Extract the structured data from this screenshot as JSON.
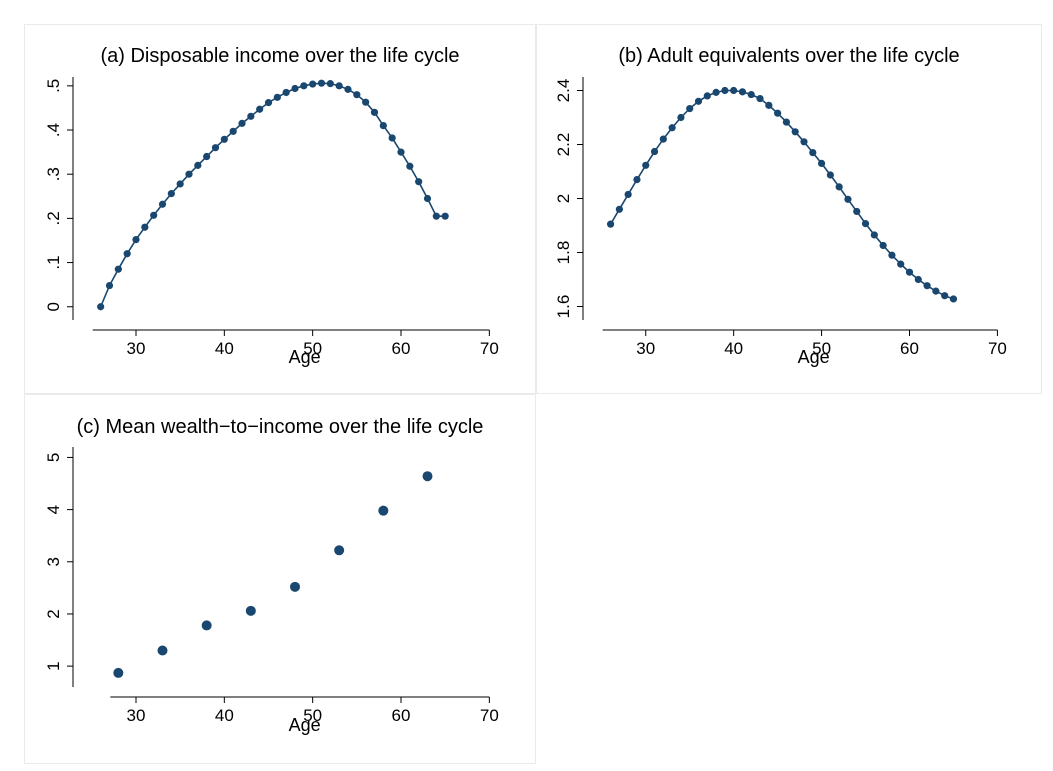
{
  "figure": {
    "colors": {
      "marker": "#1a476f",
      "line": "#1a476f",
      "axis": "#000000",
      "panel_border": "#eaeaea"
    }
  },
  "chart_data": [
    {
      "id": "a",
      "type": "line",
      "title": "(a) Disposable income over the life cycle",
      "xlabel": "Age",
      "ylabel": "",
      "xlim": [
        24,
        72
      ],
      "ylim": [
        -0.03,
        0.52
      ],
      "xticks": [
        30,
        40,
        50,
        60,
        70
      ],
      "xtick_labels": [
        "30",
        "40",
        "50",
        "60",
        "70"
      ],
      "yticks": [
        0,
        0.1,
        0.2,
        0.3,
        0.4,
        0.5
      ],
      "ytick_labels": [
        "0",
        ".1",
        ".2",
        ".3",
        ".4",
        ".5"
      ],
      "grid": false,
      "markers": true,
      "series": [
        {
          "x": [
            26,
            27,
            28,
            29,
            30,
            31,
            32,
            33,
            34,
            35,
            36,
            37,
            38,
            39,
            40,
            41,
            42,
            43,
            44,
            45,
            46,
            47,
            48,
            49,
            50,
            51,
            52,
            53,
            54,
            55,
            56,
            57,
            58,
            59,
            60,
            61,
            62,
            63,
            64,
            65
          ],
          "y": [
            0.0,
            0.048,
            0.085,
            0.12,
            0.152,
            0.18,
            0.207,
            0.232,
            0.256,
            0.278,
            0.3,
            0.32,
            0.34,
            0.36,
            0.379,
            0.397,
            0.415,
            0.431,
            0.447,
            0.462,
            0.474,
            0.485,
            0.494,
            0.5,
            0.504,
            0.506,
            0.505,
            0.5,
            0.492,
            0.48,
            0.463,
            0.44,
            0.41,
            0.382,
            0.35,
            0.318,
            0.283,
            0.245,
            0.205,
            0.205
          ]
        }
      ]
    },
    {
      "id": "b",
      "type": "line",
      "title": "(b) Adult equivalents over the life cycle",
      "xlabel": "Age",
      "ylabel": "",
      "xlim": [
        24,
        72
      ],
      "ylim": [
        1.55,
        2.45
      ],
      "xticks": [
        30,
        40,
        50,
        60,
        70
      ],
      "xtick_labels": [
        "30",
        "40",
        "50",
        "60",
        "70"
      ],
      "yticks": [
        1.6,
        1.8,
        2.0,
        2.2,
        2.4
      ],
      "ytick_labels": [
        "1.6",
        "1.8",
        "2",
        "2.2",
        "2.4"
      ],
      "grid": false,
      "markers": true,
      "series": [
        {
          "x": [
            26,
            27,
            28,
            29,
            30,
            31,
            32,
            33,
            34,
            35,
            36,
            37,
            38,
            39,
            40,
            41,
            42,
            43,
            44,
            45,
            46,
            47,
            48,
            49,
            50,
            51,
            52,
            53,
            54,
            55,
            56,
            57,
            58,
            59,
            60,
            61,
            62,
            63,
            64,
            65
          ],
          "y": [
            1.905,
            1.96,
            2.015,
            2.07,
            2.123,
            2.174,
            2.22,
            2.262,
            2.3,
            2.333,
            2.36,
            2.38,
            2.393,
            2.4,
            2.4,
            2.395,
            2.385,
            2.37,
            2.345,
            2.316,
            2.283,
            2.247,
            2.21,
            2.17,
            2.13,
            2.087,
            2.043,
            1.997,
            1.952,
            1.907,
            1.865,
            1.826,
            1.79,
            1.757,
            1.727,
            1.7,
            1.677,
            1.657,
            1.64,
            1.628
          ]
        }
      ]
    },
    {
      "id": "c",
      "type": "scatter",
      "title": "(c) Mean wealth−to−income over the life cycle",
      "xlabel": "Age",
      "ylabel": "",
      "xlim": [
        24,
        72
      ],
      "ylim": [
        0.6,
        5.2
      ],
      "xticks": [
        30,
        40,
        50,
        60,
        70
      ],
      "xtick_labels": [
        "30",
        "40",
        "50",
        "60",
        "70"
      ],
      "yticks": [
        1,
        2,
        3,
        4,
        5
      ],
      "ytick_labels": [
        "1",
        "2",
        "3",
        "4",
        "5"
      ],
      "grid": false,
      "markers": true,
      "series": [
        {
          "x": [
            28,
            33,
            38,
            43,
            48,
            53,
            58,
            63
          ],
          "y": [
            0.87,
            1.3,
            1.78,
            2.06,
            2.52,
            3.22,
            3.98,
            4.64
          ]
        }
      ]
    }
  ]
}
